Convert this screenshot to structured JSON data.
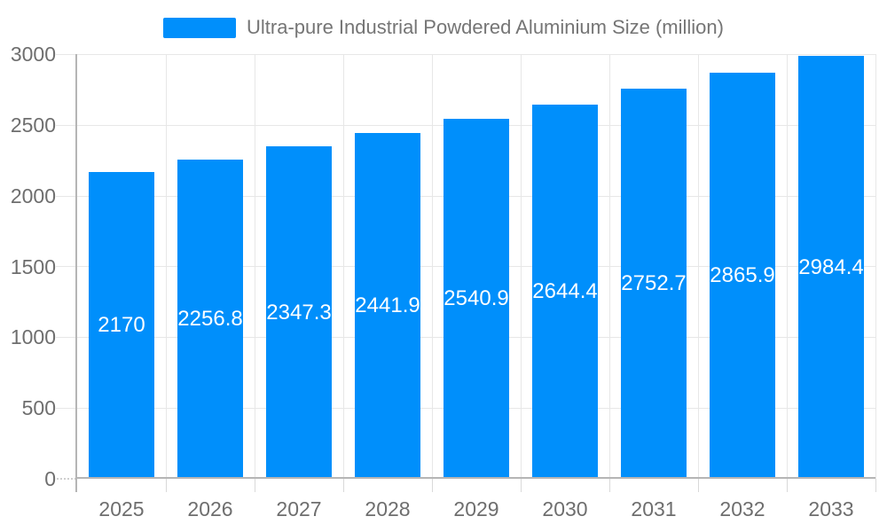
{
  "chart_data": {
    "type": "bar",
    "title": "",
    "legend": {
      "label": "Ultra-pure Industrial Powdered Aluminium Size (million)",
      "position": "top"
    },
    "categories": [
      "2025",
      "2026",
      "2027",
      "2028",
      "2029",
      "2030",
      "2031",
      "2032",
      "2033"
    ],
    "series": [
      {
        "name": "Ultra-pure Industrial Powdered Aluminium Size (million)",
        "values": [
          2170,
          2256.8,
          2347.3,
          2441.9,
          2540.9,
          2644.4,
          2752.7,
          2865.9,
          2984.4
        ]
      }
    ],
    "value_labels": [
      "2170",
      "2256.8",
      "2347.3",
      "2441.9",
      "2540.9",
      "2644.4",
      "2752.7",
      "2865.9",
      "2984.4"
    ],
    "xlabel": "",
    "ylabel": "",
    "ylim": [
      0,
      3000
    ],
    "yticks": [
      0,
      500,
      1000,
      1500,
      2000,
      2500,
      3000
    ],
    "grid": true,
    "colors": {
      "bar": "#008FFB",
      "bar_label_text": "#ffffff",
      "tick_text": "#6e6e6e",
      "legend_text": "#757575",
      "gridline": "#e7e7e7",
      "axis_line": "#b5b5b5",
      "minor_tick": "#d9d9d9",
      "background": "#ffffff"
    }
  }
}
